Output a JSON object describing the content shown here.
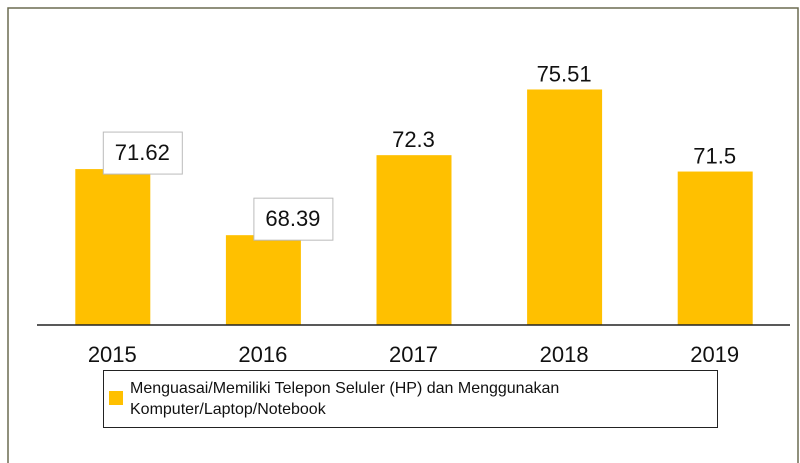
{
  "chart_data": {
    "type": "bar",
    "categories": [
      "2015",
      "2016",
      "2017",
      "2018",
      "2019"
    ],
    "series": [
      {
        "name": "Menguasai/Memiliki Telepon Seluler (HP) dan Menggunakan Komputer/Laptop/Notebook",
        "color": "#ffc000",
        "values": [
          71.62,
          68.39,
          72.3,
          75.51,
          71.5
        ]
      }
    ],
    "ylim": [
      64,
      77
    ]
  }
}
